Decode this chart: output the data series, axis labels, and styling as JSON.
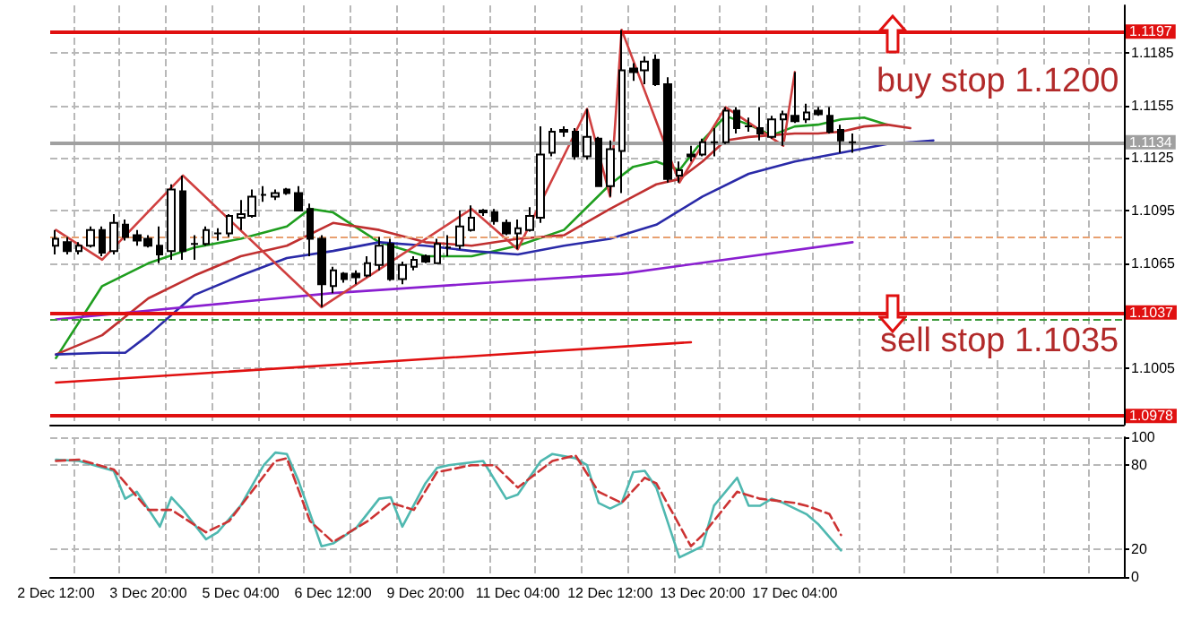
{
  "chart_data": [
    {
      "type": "candlestick",
      "categories": [
        null,
        null,
        null,
        null,
        null,
        null,
        null,
        null,
        null,
        null,
        null,
        null,
        null,
        null,
        null,
        null,
        null,
        null,
        null,
        null,
        null,
        null,
        null,
        null,
        null,
        null,
        null,
        null,
        null,
        null,
        null,
        null,
        null,
        null,
        null,
        null,
        null,
        null,
        null,
        null,
        null,
        null,
        null,
        null,
        null,
        null,
        null,
        null,
        null,
        null,
        null,
        null,
        null,
        null,
        null,
        null,
        null,
        null,
        null,
        null,
        null,
        null,
        null,
        null,
        null,
        null,
        null,
        null,
        null,
        null,
        null,
        null,
        null,
        null,
        null,
        null,
        null,
        null,
        null,
        null,
        null,
        null,
        null,
        null,
        null,
        null,
        null,
        null,
        null,
        null,
        null,
        null,
        null
      ],
      "ohlc": [
        [
          1.1075,
          1.1084,
          1.107,
          1.1079
        ],
        [
          1.1077,
          1.108,
          1.107,
          1.1072
        ],
        [
          1.1072,
          1.1077,
          1.107,
          1.1075
        ],
        [
          1.1075,
          1.1086,
          1.1074,
          1.1084
        ],
        [
          1.1084,
          1.1086,
          1.1069,
          1.1071
        ],
        [
          1.1072,
          1.1093,
          1.107,
          1.1088
        ],
        [
          1.1087,
          1.109,
          1.1078,
          1.108
        ],
        [
          1.1081,
          1.1084,
          1.1075,
          1.1078
        ],
        [
          1.1079,
          1.1081,
          1.1074,
          1.1075
        ],
        [
          1.1075,
          1.1086,
          1.1065,
          1.107
        ],
        [
          1.1072,
          1.111,
          1.1067,
          1.1107
        ],
        [
          1.1106,
          1.1115,
          1.1067,
          1.1072
        ],
        [
          1.1076,
          1.1081,
          1.1067,
          1.1076
        ],
        [
          1.1076,
          1.1086,
          1.1075,
          1.1084
        ],
        [
          1.1082,
          1.1085,
          1.1078,
          1.1082
        ],
        [
          1.1082,
          1.1093,
          1.108,
          1.1092
        ],
        [
          1.1091,
          1.1101,
          1.1084,
          1.1093
        ],
        [
          1.1092,
          1.1107,
          1.1091,
          1.1103
        ],
        [
          1.1104,
          1.1109,
          1.11,
          1.1104
        ],
        [
          1.1103,
          1.1107,
          1.1101,
          1.1105
        ],
        [
          1.1107,
          1.1108,
          1.1104,
          1.1105
        ],
        [
          1.1105,
          1.1109,
          1.1095,
          1.1095
        ],
        [
          1.1096,
          1.1099,
          1.1069,
          1.1079
        ],
        [
          1.1079,
          1.1081,
          1.104,
          1.1053
        ],
        [
          1.1052,
          1.1063,
          1.1048,
          1.1061
        ],
        [
          1.1059,
          1.106,
          1.1054,
          1.1056
        ],
        [
          1.1059,
          1.1061,
          1.1053,
          1.1057
        ],
        [
          1.1058,
          1.1069,
          1.1057,
          1.1065
        ],
        [
          1.1064,
          1.108,
          1.1061,
          1.1075
        ],
        [
          1.1076,
          1.1079,
          1.1055,
          1.1056
        ],
        [
          1.1056,
          1.1066,
          1.1053,
          1.1064
        ],
        [
          1.1063,
          1.1069,
          1.1061,
          1.1067
        ],
        [
          1.1069,
          1.107,
          1.1065,
          1.1066
        ],
        [
          1.1065,
          1.1079,
          1.1065,
          1.1076
        ],
        [
          1.1074,
          1.1081,
          1.1069,
          1.1074
        ],
        [
          1.1075,
          1.1095,
          1.1073,
          1.1086
        ],
        [
          1.1084,
          1.1098,
          1.1083,
          1.1091
        ],
        [
          1.1094,
          1.1096,
          1.1092,
          1.1095
        ],
        [
          1.1094,
          1.1096,
          1.1087,
          1.1089
        ],
        [
          1.1088,
          1.109,
          1.1081,
          1.1082
        ],
        [
          1.1082,
          1.109,
          1.1073,
          1.1085
        ],
        [
          1.1084,
          1.1097,
          1.1083,
          1.1092
        ],
        [
          1.1091,
          1.1143,
          1.1088,
          1.1127
        ],
        [
          1.1128,
          1.1142,
          1.1126,
          1.114
        ],
        [
          1.114,
          1.1143,
          1.1137,
          1.1141
        ],
        [
          1.114,
          1.1142,
          1.1124,
          1.1126
        ],
        [
          1.1126,
          1.1153,
          1.1124,
          1.1137
        ],
        [
          1.1136,
          1.1137,
          1.1109,
          1.1109
        ],
        [
          1.1109,
          1.1135,
          1.1103,
          1.113
        ],
        [
          1.1129,
          1.1198,
          1.1105,
          1.1175
        ],
        [
          1.1176,
          1.1179,
          1.1169,
          1.1174
        ],
        [
          1.1175,
          1.1183,
          1.1167,
          1.118
        ],
        [
          1.1181,
          1.1184,
          1.1166,
          1.1167
        ],
        [
          1.1167,
          1.1171,
          1.1111,
          1.1113
        ],
        [
          1.1115,
          1.1123,
          1.1111,
          1.1118
        ],
        [
          1.1127,
          1.1132,
          1.1123,
          1.1126
        ],
        [
          1.1127,
          1.1136,
          1.1126,
          1.1134
        ],
        [
          1.1134,
          1.1142,
          1.1126,
          1.1134
        ],
        [
          1.1134,
          1.1154,
          1.1133,
          1.1152
        ],
        [
          1.1152,
          1.1154,
          1.1139,
          1.1142
        ],
        [
          1.1143,
          1.1148,
          1.114,
          1.1143
        ],
        [
          1.1142,
          1.1154,
          1.1135,
          1.1139
        ],
        [
          1.1137,
          1.1149,
          1.1136,
          1.1147
        ],
        [
          1.1147,
          1.1152,
          1.1132,
          1.115
        ],
        [
          1.1149,
          1.1174,
          1.1145,
          1.1146
        ],
        [
          1.1147,
          1.1156,
          1.1145,
          1.1151
        ],
        [
          1.1152,
          1.1154,
          1.1149,
          1.115
        ],
        [
          1.1149,
          1.1154,
          1.1139,
          1.114
        ],
        [
          1.1141,
          1.1144,
          1.1128,
          1.1135
        ],
        [
          1.1134,
          1.1139,
          1.1128,
          1.1134
        ],
        null,
        null,
        null,
        null,
        null,
        null,
        null,
        null,
        null,
        null,
        null,
        null,
        null,
        null,
        null,
        null,
        null,
        null,
        null,
        null,
        null,
        null,
        null
      ],
      "series": [
        {
          "type": "line",
          "color": "#1f9e1f",
          "values": [
            1.1011,
            null,
            null,
            null,
            1.1052,
            null,
            null,
            null,
            1.1065,
            null,
            null,
            null,
            1.1074,
            null,
            null,
            null,
            1.1079,
            null,
            null,
            null,
            1.1086,
            null,
            1.1096,
            null,
            1.1094,
            null,
            null,
            null,
            1.1077,
            null,
            null,
            null,
            1.1069,
            null,
            null,
            null,
            1.1069,
            null,
            null,
            null,
            1.1075,
            null,
            null,
            null,
            1.1084,
            null,
            null,
            null,
            1.111,
            null,
            1.112,
            null,
            1.1123,
            null,
            1.1118,
            null,
            1.1135,
            null,
            1.1149,
            null,
            1.1144,
            null,
            1.1138,
            null,
            1.1143,
            null,
            1.1144,
            null,
            1.1147,
            null,
            1.1148,
            null,
            1.1144,
            null,
            null,
            null,
            null,
            null,
            null,
            null,
            null,
            null,
            null,
            null,
            null,
            null,
            null,
            null,
            null,
            null,
            null,
            null,
            null
          ]
        },
        {
          "type": "line",
          "color": "#c03030",
          "values": [
            1.1013,
            null,
            null,
            null,
            1.1024,
            null,
            null,
            null,
            1.1045,
            null,
            null,
            null,
            1.1058,
            null,
            null,
            null,
            1.1069,
            null,
            null,
            null,
            1.1075,
            null,
            null,
            null,
            1.1088,
            null,
            null,
            null,
            1.1084,
            null,
            null,
            null,
            1.1077,
            null,
            null,
            null,
            1.1075,
            null,
            null,
            null,
            1.1079,
            null,
            null,
            null,
            1.1081,
            null,
            null,
            null,
            1.1096,
            null,
            1.1103,
            null,
            1.111,
            null,
            1.1113,
            null,
            1.1123,
            null,
            1.1135,
            null,
            1.1137,
            null,
            1.1138,
            null,
            1.1139,
            null,
            1.1139,
            null,
            1.114,
            null,
            1.1143,
            null,
            1.1144,
            null,
            1.1142,
            null,
            null,
            null,
            null,
            null,
            null,
            null,
            null,
            null,
            null,
            null,
            null,
            null,
            null,
            null,
            null,
            null,
            null
          ]
        },
        {
          "type": "line",
          "color": "#2a2aa8",
          "values": [
            1.1013,
            null,
            null,
            null,
            1.1014,
            null,
            1.1014,
            null,
            1.1024,
            null,
            null,
            null,
            1.1047,
            null,
            null,
            null,
            1.1058,
            null,
            null,
            null,
            1.1068,
            null,
            null,
            null,
            1.1072,
            null,
            null,
            null,
            1.1077,
            null,
            null,
            null,
            1.1075,
            null,
            null,
            null,
            1.1072,
            null,
            null,
            null,
            1.107,
            null,
            null,
            null,
            1.1075,
            null,
            null,
            null,
            1.1079,
            null,
            null,
            null,
            1.1087,
            null,
            null,
            null,
            1.1103,
            null,
            null,
            null,
            1.1116,
            null,
            null,
            null,
            1.1123,
            null,
            null,
            null,
            1.1128,
            null,
            null,
            null,
            1.1133,
            null,
            null,
            null,
            1.1135,
            null,
            null,
            null,
            null,
            null,
            null,
            null,
            null,
            null,
            null,
            null,
            null,
            null,
            null,
            null,
            null
          ]
        },
        {
          "type": "line",
          "color": "#8a1fd0",
          "values": [
            1.1033,
            null,
            null,
            null,
            null,
            null,
            null,
            null,
            null,
            null,
            null,
            null,
            null,
            null,
            null,
            null,
            null,
            null,
            null,
            null,
            null,
            null,
            null,
            null,
            1.1048,
            null,
            null,
            null,
            null,
            null,
            null,
            null,
            null,
            null,
            null,
            null,
            null,
            null,
            null,
            null,
            null,
            null,
            null,
            null,
            null,
            null,
            null,
            null,
            null,
            1.1059,
            null,
            null,
            null,
            null,
            null,
            null,
            null,
            null,
            null,
            null,
            null,
            null,
            null,
            null,
            null,
            null,
            null,
            null,
            null,
            1.1077,
            null,
            null,
            null,
            null,
            null,
            null,
            null,
            null,
            null,
            null,
            null,
            null,
            null,
            null,
            null,
            null,
            null,
            null,
            null,
            null,
            null,
            null,
            null
          ]
        },
        {
          "type": "line",
          "color": "#e01010",
          "values": [
            1.0997,
            null,
            null,
            null,
            null,
            null,
            null,
            null,
            null,
            null,
            null,
            null,
            null,
            null,
            null,
            null,
            null,
            null,
            null,
            null,
            null,
            null,
            null,
            null,
            null,
            null,
            null,
            null,
            null,
            null,
            null,
            null,
            null,
            null,
            null,
            null,
            null,
            null,
            null,
            null,
            null,
            null,
            null,
            null,
            null,
            null,
            null,
            null,
            null,
            null,
            null,
            null,
            null,
            null,
            null,
            1.102,
            null,
            null,
            null,
            null,
            null,
            null,
            null,
            null,
            null,
            null,
            null,
            null,
            null,
            null,
            null,
            null,
            null,
            null,
            null,
            null,
            null,
            null,
            null,
            null,
            null,
            null,
            null,
            null,
            null,
            null,
            null,
            null,
            null,
            null,
            null,
            null,
            null
          ]
        },
        {
          "type": "line",
          "color": "#d04040",
          "values": [
            1.1084,
            null,
            null,
            null,
            1.1067,
            null,
            null,
            null,
            null,
            null,
            null,
            1.1115,
            null,
            null,
            null,
            null,
            null,
            null,
            null,
            null,
            null,
            null,
            null,
            1.104,
            null,
            null,
            null,
            null,
            null,
            null,
            null,
            null,
            null,
            null,
            null,
            null,
            1.1096,
            null,
            null,
            null,
            1.1073,
            null,
            null,
            null,
            null,
            null,
            1.1153,
            null,
            1.1103,
            1.1198,
            null,
            null,
            null,
            null,
            1.1111,
            null,
            null,
            null,
            1.1154,
            null,
            null,
            null,
            null,
            1.1132,
            1.1174,
            null,
            null,
            null,
            null,
            null,
            null,
            null,
            null,
            null,
            null,
            null,
            null,
            null,
            null,
            null,
            null,
            null,
            null,
            null,
            null,
            null,
            null,
            null,
            null,
            null,
            null,
            null,
            null
          ]
        }
      ],
      "ylim": [
        1.0973,
        1.1212
      ],
      "yticks": [
        1.1005,
        1.1065,
        1.1095,
        1.1125,
        1.1155,
        1.1185
      ],
      "ref_lines": [
        {
          "axis": "y",
          "value": 1.1197,
          "label": "1.1197",
          "color": "#e01010"
        },
        {
          "axis": "y",
          "value": 1.1134,
          "label": "1.1134",
          "color": "#a0a0a0"
        },
        {
          "axis": "y",
          "value": 1.108,
          "label": null,
          "color": "#e8a070",
          "line_style": "dashed"
        },
        {
          "axis": "y",
          "value": 1.1037,
          "label": "1.1037",
          "color": "#e01010"
        },
        {
          "axis": "y",
          "value": 1.1033,
          "label": null,
          "color": "#3a9a3a",
          "line_style": "dashed"
        },
        {
          "axis": "y",
          "value": 1.0978,
          "label": "1.0978",
          "color": "#e01010"
        }
      ],
      "annotations": [
        "buy stop 1.1200",
        "sell stop 1.1035"
      ],
      "grid": true,
      "tick_labels": "y"
    },
    {
      "type": "line",
      "categories": [
        "2 Dec 12:00",
        null,
        null,
        null,
        null,
        null,
        null,
        null,
        "3 Dec 20:00",
        null,
        null,
        null,
        null,
        null,
        null,
        null,
        "5 Dec 04:00",
        null,
        null,
        null,
        null,
        null,
        null,
        null,
        "6 Dec 12:00",
        null,
        null,
        null,
        null,
        null,
        null,
        null,
        "9 Dec 20:00",
        null,
        null,
        null,
        null,
        null,
        null,
        null,
        "11 Dec 04:00",
        null,
        null,
        null,
        null,
        null,
        null,
        null,
        "12 Dec 12:00",
        null,
        null,
        null,
        null,
        null,
        null,
        null,
        "13 Dec 20:00",
        null,
        null,
        null,
        null,
        null,
        null,
        null,
        "17 Dec 04:00",
        null,
        null,
        null,
        null,
        null,
        null,
        null,
        null,
        null,
        null,
        null,
        null,
        null,
        null,
        null,
        null,
        null,
        null,
        null,
        null,
        null,
        null,
        null,
        null,
        null,
        null,
        null,
        null
      ],
      "series": [
        {
          "color": "#4fb8b0",
          "values": [
            84,
            null,
            83,
            null,
            null,
            76,
            56,
            61,
            null,
            36,
            57,
            48,
            null,
            27,
            32,
            null,
            51,
            null,
            80,
            89,
            88,
            69,
            null,
            22,
            24,
            null,
            35,
            null,
            56,
            57,
            36,
            null,
            67,
            78,
            80,
            null,
            null,
            83,
            null,
            56,
            59,
            null,
            83,
            88,
            null,
            85,
            80,
            53,
            49,
            53,
            75,
            76,
            64,
            null,
            14,
            null,
            22,
            51,
            null,
            71,
            51,
            51,
            56,
            53,
            null,
            45,
            38,
            null,
            19,
            null,
            null,
            null,
            null,
            null,
            null,
            null,
            null,
            null,
            null,
            null,
            null,
            null,
            null,
            null,
            null,
            null,
            null,
            null,
            null,
            null,
            null,
            null,
            null
          ]
        },
        {
          "color": "#cc3333",
          "line_style": "dashed",
          "values": [
            83,
            null,
            84,
            null,
            null,
            77,
            null,
            null,
            48,
            null,
            48,
            null,
            null,
            32,
            null,
            40,
            null,
            null,
            null,
            83,
            85,
            null,
            40,
            null,
            25,
            null,
            null,
            40,
            null,
            53,
            null,
            48,
            null,
            75,
            null,
            null,
            80,
            null,
            80,
            null,
            64,
            null,
            null,
            83,
            null,
            87,
            null,
            61,
            null,
            53,
            null,
            71,
            67,
            null,
            null,
            22,
            30,
            null,
            null,
            61,
            null,
            56,
            null,
            null,
            53,
            51,
            null,
            45,
            30,
            null,
            null,
            null,
            null,
            null,
            null,
            null,
            null,
            null,
            null,
            null,
            null,
            null,
            null,
            null,
            null,
            null,
            null,
            null,
            null,
            null,
            null,
            null,
            null
          ]
        }
      ],
      "ylim": [
        0,
        100
      ],
      "yticks": [
        0,
        20,
        80,
        100
      ],
      "grid": true
    }
  ]
}
